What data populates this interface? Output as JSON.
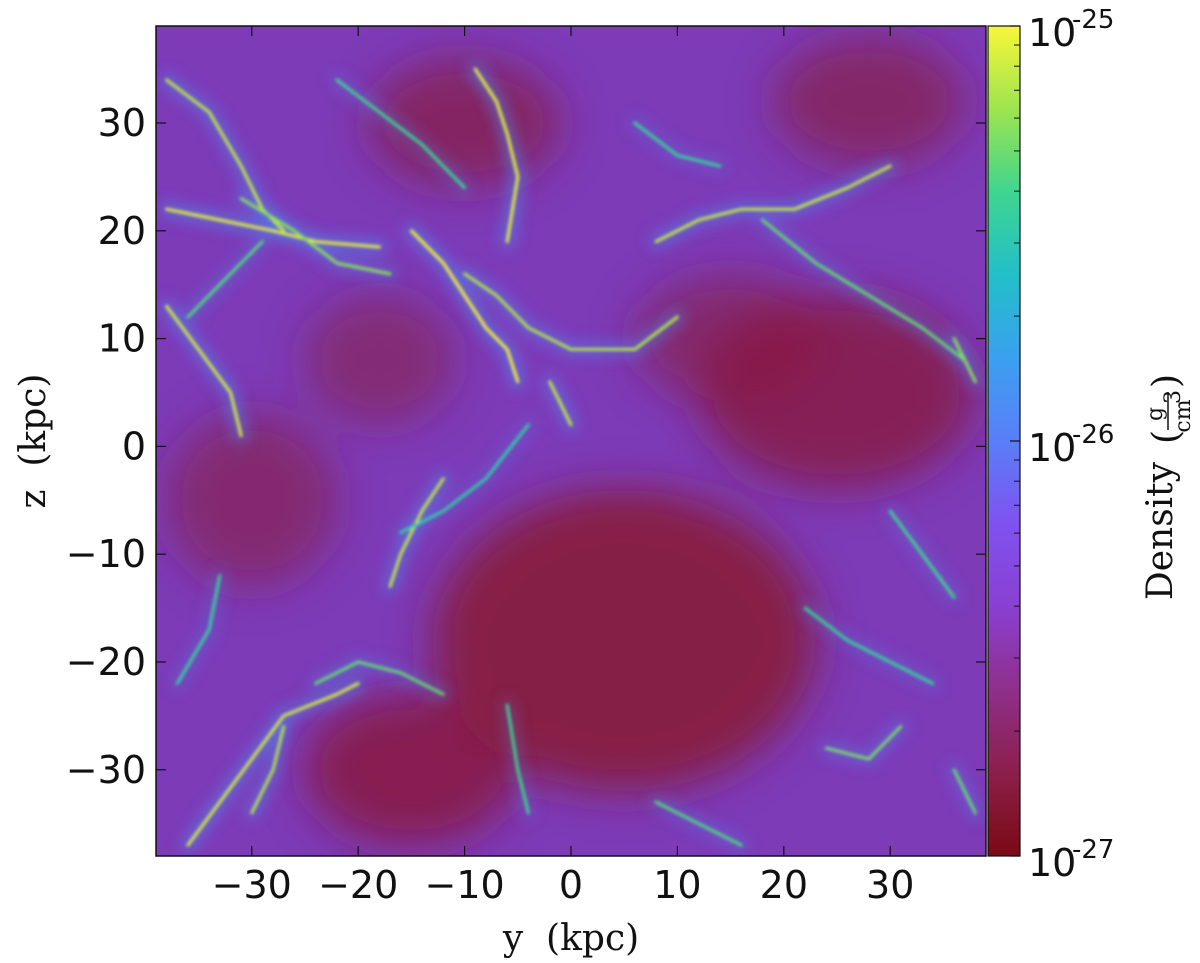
{
  "chart_data": {
    "type": "heatmap",
    "title": "",
    "xlabel": "y  (kpc)",
    "ylabel": "z  (kpc)",
    "xlim": [
      -39,
      39
    ],
    "ylim": [
      -38,
      39
    ],
    "xticks": [
      -30,
      -20,
      -10,
      0,
      10,
      20,
      30
    ],
    "yticks": [
      -30,
      -20,
      -10,
      0,
      10,
      20,
      30
    ],
    "xtick_labels": [
      "−30",
      "−20",
      "−10",
      "0",
      "10",
      "20",
      "30"
    ],
    "ytick_labels": [
      "−30",
      "−20",
      "−10",
      "0",
      "10",
      "20",
      "30"
    ],
    "colorbar": {
      "label": "Density",
      "unit_numerator": "g",
      "unit_denominator": "cm",
      "unit_denominator_exponent": "3",
      "scale": "log",
      "range": [
        1e-27,
        1e-25
      ],
      "ticks": [
        {
          "value": 1e-25,
          "base": "10",
          "exponent": "-25"
        },
        {
          "value": 1e-26,
          "base": "10",
          "exponent": "-26"
        },
        {
          "value": 1e-27,
          "base": "10",
          "exponent": "-27"
        }
      ],
      "colormap": [
        "#7a0a14",
        "#8b1f4a",
        "#8f2f8a",
        "#8a3fd2",
        "#7f52f0",
        "#5a7ef8",
        "#3aa0f0",
        "#22bfc8",
        "#3fd58f",
        "#9ee44f",
        "#f8f63a"
      ]
    },
    "filaments": [
      {
        "path": [
          [
            -38,
            34
          ],
          [
            -34,
            31
          ],
          [
            -31,
            26
          ],
          [
            -29,
            22
          ],
          [
            -27,
            20
          ]
        ],
        "level": 0.85
      },
      {
        "path": [
          [
            -38,
            22
          ],
          [
            -33,
            21
          ],
          [
            -28,
            20
          ],
          [
            -24,
            19
          ],
          [
            -18,
            18.5
          ]
        ],
        "level": 0.95
      },
      {
        "path": [
          [
            -31,
            23
          ],
          [
            -26,
            20
          ],
          [
            -22,
            17
          ],
          [
            -17,
            16
          ]
        ],
        "level": 0.7
      },
      {
        "path": [
          [
            -9,
            35
          ],
          [
            -7,
            32
          ],
          [
            -6,
            29
          ],
          [
            -5,
            25
          ],
          [
            -6,
            19
          ]
        ],
        "level": 0.95
      },
      {
        "path": [
          [
            -15,
            20
          ],
          [
            -12,
            17
          ],
          [
            -10,
            14
          ],
          [
            -8,
            11
          ],
          [
            -6,
            9
          ],
          [
            -5,
            6
          ]
        ],
        "level": 1.0
      },
      {
        "path": [
          [
            -10,
            16
          ],
          [
            -7,
            14
          ],
          [
            -4,
            11
          ],
          [
            0,
            9
          ],
          [
            6,
            9
          ],
          [
            10,
            12
          ]
        ],
        "level": 0.8
      },
      {
        "path": [
          [
            8,
            19
          ],
          [
            12,
            21
          ],
          [
            16,
            22
          ],
          [
            21,
            22
          ],
          [
            26,
            24
          ],
          [
            30,
            26
          ]
        ],
        "level": 0.85
      },
      {
        "path": [
          [
            18,
            21
          ],
          [
            23,
            17
          ],
          [
            28,
            14
          ],
          [
            33,
            11
          ],
          [
            37,
            8
          ]
        ],
        "level": 0.6
      },
      {
        "path": [
          [
            -38,
            13
          ],
          [
            -35,
            9
          ],
          [
            -32,
            5
          ],
          [
            -31,
            1
          ]
        ],
        "level": 0.9
      },
      {
        "path": [
          [
            -36,
            12
          ],
          [
            -33,
            15
          ],
          [
            -29,
            19
          ]
        ],
        "level": 0.55
      },
      {
        "path": [
          [
            -2,
            6
          ],
          [
            -1,
            4
          ],
          [
            0,
            2
          ]
        ],
        "level": 0.85
      },
      {
        "path": [
          [
            -17,
            -13
          ],
          [
            -16,
            -10
          ],
          [
            -14,
            -6
          ],
          [
            -12,
            -3
          ]
        ],
        "level": 0.85
      },
      {
        "path": [
          [
            -36,
            -37
          ],
          [
            -33,
            -33
          ],
          [
            -30,
            -29
          ],
          [
            -27,
            -25
          ],
          [
            -22,
            -23
          ],
          [
            -20,
            -22
          ]
        ],
        "level": 0.9
      },
      {
        "path": [
          [
            -30,
            -34
          ],
          [
            -28,
            -30
          ],
          [
            -27,
            -26
          ]
        ],
        "level": 0.8
      },
      {
        "path": [
          [
            -24,
            -22
          ],
          [
            -20,
            -20
          ],
          [
            -16,
            -21
          ],
          [
            -12,
            -23
          ]
        ],
        "level": 0.6
      },
      {
        "path": [
          [
            -6,
            -24
          ],
          [
            -5,
            -30
          ],
          [
            -4,
            -34
          ]
        ],
        "level": 0.5
      },
      {
        "path": [
          [
            8,
            -33
          ],
          [
            12,
            -35
          ],
          [
            16,
            -37
          ]
        ],
        "level": 0.55
      },
      {
        "path": [
          [
            24,
            -28
          ],
          [
            28,
            -29
          ],
          [
            31,
            -26
          ]
        ],
        "level": 0.65
      },
      {
        "path": [
          [
            30,
            -6
          ],
          [
            33,
            -10
          ],
          [
            36,
            -14
          ]
        ],
        "level": 0.5
      },
      {
        "path": [
          [
            22,
            -15
          ],
          [
            26,
            -18
          ],
          [
            30,
            -20
          ],
          [
            34,
            -22
          ]
        ],
        "level": 0.45
      },
      {
        "path": [
          [
            -4,
            2
          ],
          [
            -8,
            -3
          ],
          [
            -12,
            -6
          ],
          [
            -16,
            -8
          ]
        ],
        "level": 0.4
      },
      {
        "path": [
          [
            6,
            30
          ],
          [
            10,
            27
          ],
          [
            14,
            26
          ]
        ],
        "level": 0.45
      },
      {
        "path": [
          [
            -22,
            34
          ],
          [
            -18,
            31
          ],
          [
            -14,
            28
          ],
          [
            -10,
            24
          ]
        ],
        "level": 0.5
      },
      {
        "path": [
          [
            36,
            10
          ],
          [
            38,
            6
          ]
        ],
        "level": 0.7
      },
      {
        "path": [
          [
            -37,
            -22
          ],
          [
            -34,
            -17
          ],
          [
            -33,
            -12
          ]
        ],
        "level": 0.45
      },
      {
        "path": [
          [
            36,
            -30
          ],
          [
            38,
            -34
          ]
        ],
        "level": 0.6
      }
    ],
    "voids": [
      {
        "center": [
          5,
          -18
        ],
        "rx": 18,
        "ry": 14,
        "depth": 0.95
      },
      {
        "center": [
          -15,
          -30
        ],
        "rx": 10,
        "ry": 7,
        "depth": 0.85
      },
      {
        "center": [
          25,
          5
        ],
        "rx": 13,
        "ry": 9,
        "depth": 0.8
      },
      {
        "center": [
          -10,
          30
        ],
        "rx": 9,
        "ry": 6,
        "depth": 0.7
      },
      {
        "center": [
          28,
          32
        ],
        "rx": 9,
        "ry": 6,
        "depth": 0.65
      },
      {
        "center": [
          -30,
          -5
        ],
        "rx": 8,
        "ry": 8,
        "depth": 0.6
      },
      {
        "center": [
          -18,
          8
        ],
        "rx": 7,
        "ry": 6,
        "depth": 0.55
      },
      {
        "center": [
          15,
          10
        ],
        "rx": 9,
        "ry": 6,
        "depth": 0.6
      }
    ]
  }
}
